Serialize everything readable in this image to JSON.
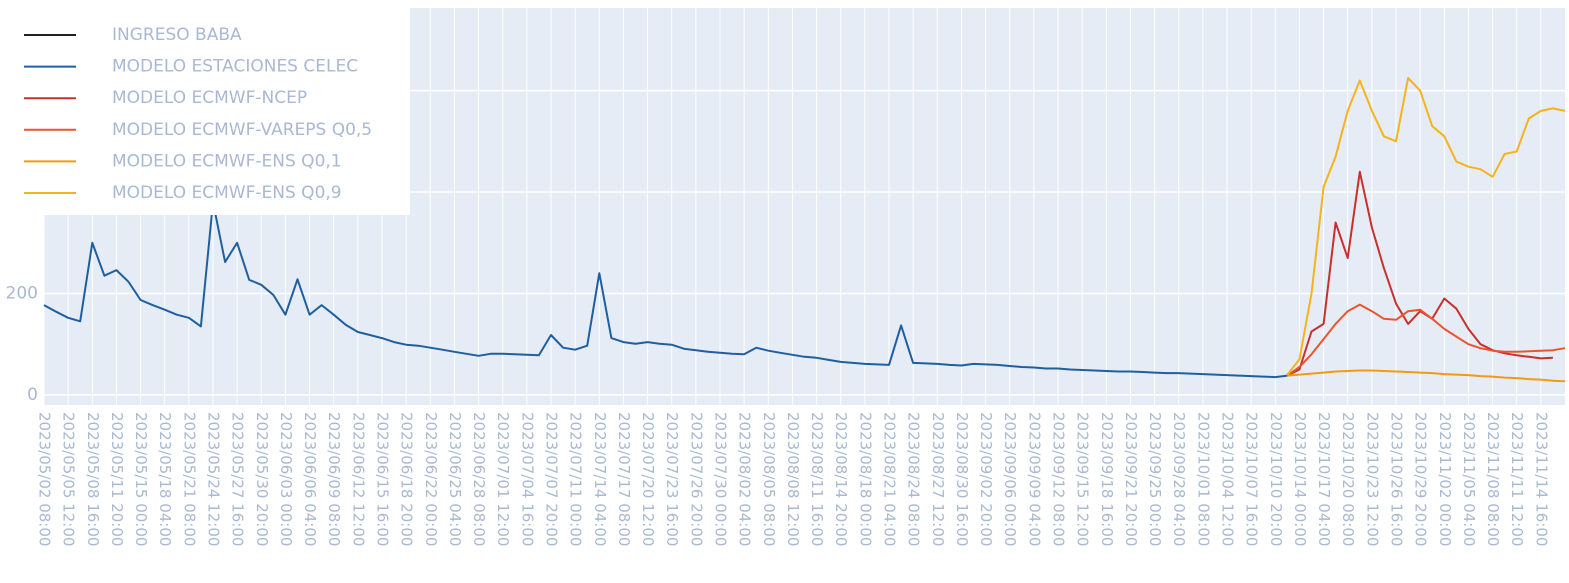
{
  "chart_data": {
    "type": "line",
    "x": [
      "2023/05/02 08:00",
      "2023/05/03 22:00",
      "2023/05/05 12:00",
      "2023/05/07 02:00",
      "2023/05/08 16:00",
      "2023/05/10 06:00",
      "2023/05/11 20:00",
      "2023/05/13 10:00",
      "2023/05/15 00:00",
      "2023/05/16 14:00",
      "2023/05/18 04:00",
      "2023/05/19 18:00",
      "2023/05/21 08:00",
      "2023/05/22 22:00",
      "2023/05/24 12:00",
      "2023/05/26 02:00",
      "2023/05/27 16:00",
      "2023/05/29 06:00",
      "2023/05/30 20:00",
      "2023/06/01 10:00",
      "2023/06/03 00:00",
      "2023/06/04 14:00",
      "2023/06/06 04:00",
      "2023/06/07 18:00",
      "2023/06/09 08:00",
      "2023/06/10 22:00",
      "2023/06/12 12:00",
      "2023/06/14 02:00",
      "2023/06/15 16:00",
      "2023/06/17 06:00",
      "2023/06/18 20:00",
      "2023/06/20 10:00",
      "2023/06/22 00:00",
      "2023/06/23 14:00",
      "2023/06/25 04:00",
      "2023/06/26 18:00",
      "2023/06/28 08:00",
      "2023/06/29 22:00",
      "2023/07/01 12:00",
      "2023/07/03 02:00",
      "2023/07/04 16:00",
      "2023/07/06 06:00",
      "2023/07/07 20:00",
      "2023/07/09 10:00",
      "2023/07/11 00:00",
      "2023/07/12 14:00",
      "2023/07/14 04:00",
      "2023/07/15 18:00",
      "2023/07/17 08:00",
      "2023/07/18 22:00",
      "2023/07/20 12:00",
      "2023/07/22 02:00",
      "2023/07/23 16:00",
      "2023/07/25 06:00",
      "2023/07/26 20:00",
      "2023/07/28 10:00",
      "2023/07/30 00:00",
      "2023/07/31 14:00",
      "2023/08/02 04:00",
      "2023/08/03 18:00",
      "2023/08/05 08:00",
      "2023/08/06 22:00",
      "2023/08/08 12:00",
      "2023/08/10 02:00",
      "2023/08/11 16:00",
      "2023/08/13 06:00",
      "2023/08/14 20:00",
      "2023/08/16 10:00",
      "2023/08/18 00:00",
      "2023/08/19 14:00",
      "2023/08/21 04:00",
      "2023/08/22 18:00",
      "2023/08/24 08:00",
      "2023/08/25 22:00",
      "2023/08/27 12:00",
      "2023/08/29 02:00",
      "2023/08/30 16:00",
      "2023/09/01 06:00",
      "2023/09/02 20:00",
      "2023/09/04 10:00",
      "2023/09/06 00:00",
      "2023/09/07 14:00",
      "2023/09/09 04:00",
      "2023/09/10 18:00",
      "2023/09/12 08:00",
      "2023/09/13 22:00",
      "2023/09/15 12:00",
      "2023/09/17 02:00",
      "2023/09/18 16:00",
      "2023/09/20 06:00",
      "2023/09/21 20:00",
      "2023/09/23 10:00",
      "2023/09/25 00:00",
      "2023/09/26 14:00",
      "2023/09/28 04:00",
      "2023/09/29 18:00",
      "2023/10/01 08:00",
      "2023/10/02 22:00",
      "2023/10/04 12:00",
      "2023/10/06 02:00",
      "2023/10/07 16:00",
      "2023/10/09 06:00",
      "2023/10/10 20:00",
      "2023/10/12 10:00",
      "2023/10/14 00:00",
      "2023/10/15 14:00",
      "2023/10/17 04:00",
      "2023/10/18 18:00",
      "2023/10/20 08:00",
      "2023/10/21 22:00",
      "2023/10/23 12:00",
      "2023/10/25 02:00",
      "2023/10/26 16:00",
      "2023/10/28 06:00",
      "2023/10/29 20:00",
      "2023/10/31 10:00",
      "2023/11/02 00:00",
      "2023/11/03 14:00",
      "2023/11/05 04:00",
      "2023/11/06 18:00",
      "2023/11/08 08:00",
      "2023/11/09 22:00",
      "2023/11/11 12:00",
      "2023/11/13 02:00",
      "2023/11/14 16:00",
      "2023/11/16 06:00",
      "2023/11/17 20:00"
    ],
    "xticks": [
      "2023/05/02 08:00",
      "2023/05/05 12:00",
      "2023/05/08 16:00",
      "2023/05/11 20:00",
      "2023/05/15 00:00",
      "2023/05/18 04:00",
      "2023/05/21 08:00",
      "2023/05/24 12:00",
      "2023/05/27 16:00",
      "2023/05/30 20:00",
      "2023/06/03 00:00",
      "2023/06/06 04:00",
      "2023/06/09 08:00",
      "2023/06/12 12:00",
      "2023/06/15 16:00",
      "2023/06/18 20:00",
      "2023/06/22 00:00",
      "2023/06/25 04:00",
      "2023/06/28 08:00",
      "2023/07/01 12:00",
      "2023/07/04 16:00",
      "2023/07/07 20:00",
      "2023/07/11 00:00",
      "2023/07/14 04:00",
      "2023/07/17 08:00",
      "2023/07/20 12:00",
      "2023/07/23 16:00",
      "2023/07/26 20:00",
      "2023/07/30 00:00",
      "2023/08/02 04:00",
      "2023/08/05 08:00",
      "2023/08/08 12:00",
      "2023/08/11 16:00",
      "2023/08/14 20:00",
      "2023/08/18 00:00",
      "2023/08/21 04:00",
      "2023/08/24 08:00",
      "2023/08/27 12:00",
      "2023/08/30 16:00",
      "2023/09/02 20:00",
      "2023/09/06 00:00",
      "2023/09/09 04:00",
      "2023/09/12 08:00",
      "2023/09/15 12:00",
      "2023/09/18 16:00",
      "2023/09/21 20:00",
      "2023/09/25 00:00",
      "2023/09/28 04:00",
      "2023/10/01 08:00",
      "2023/10/04 12:00",
      "2023/10/07 16:00",
      "2023/10/10 20:00",
      "2023/10/14 00:00",
      "2023/10/17 04:00",
      "2023/10/20 08:00",
      "2023/10/23 12:00",
      "2023/10/26 16:00",
      "2023/10/29 20:00",
      "2023/11/02 00:00",
      "2023/11/05 04:00",
      "2023/11/08 08:00",
      "2023/11/11 12:00",
      "2023/11/14 16:00"
    ],
    "ylim": [
      -20,
      763
    ],
    "yticks": [
      0,
      200,
      400,
      600
    ],
    "grid": true,
    "legend": "top-left",
    "series": [
      {
        "name": "INGRESO BABA",
        "color": "#222222",
        "values": [
          null,
          null,
          null,
          null,
          null,
          null,
          null,
          null,
          null,
          null,
          null,
          null,
          null,
          null,
          null,
          null,
          null,
          null,
          null,
          null,
          null,
          null,
          null,
          null,
          null,
          null,
          null,
          null,
          null,
          null,
          null,
          null,
          null,
          null,
          null,
          null,
          null,
          null,
          null,
          null,
          null,
          null,
          null,
          null,
          null,
          null,
          null,
          null,
          null,
          null,
          null,
          null,
          null,
          null,
          null,
          null,
          null,
          null,
          null,
          null,
          null,
          null,
          null,
          null,
          null,
          null,
          null,
          null,
          null,
          null,
          null,
          null,
          null,
          null,
          null,
          null,
          null,
          null,
          null,
          null,
          null,
          null,
          null,
          null,
          null,
          null,
          null,
          null,
          null,
          null,
          null,
          null,
          null,
          null,
          null,
          null,
          null,
          null,
          null,
          null,
          null,
          null,
          null,
          null,
          null,
          null,
          null,
          null,
          null,
          null,
          null,
          null,
          null,
          null,
          null,
          null,
          null,
          null,
          null,
          null,
          null,
          null,
          null,
          null,
          null,
          null,
          null
        ]
      },
      {
        "name": "MODELO ESTACIONES CELEC",
        "color": "#1f5f9e",
        "values": [
          177,
          164,
          152,
          145,
          300,
          235,
          246,
          223,
          187,
          177,
          168,
          158,
          152,
          135,
          380,
          262,
          300,
          227,
          217,
          197,
          158,
          228,
          158,
          177,
          158,
          138,
          124,
          118,
          112,
          104,
          99,
          97,
          93,
          89,
          85,
          81,
          77,
          81,
          81,
          80,
          79,
          78,
          118,
          93,
          89,
          97,
          240,
          112,
          104,
          101,
          104,
          101,
          99,
          91,
          88,
          85,
          83,
          81,
          80,
          93,
          87,
          83,
          79,
          75,
          73,
          69,
          65,
          63,
          61,
          60,
          59,
          137,
          63,
          62,
          61,
          59,
          58,
          61,
          60,
          59,
          57,
          55,
          54,
          52,
          52,
          50,
          49,
          48,
          47,
          46,
          46,
          45,
          44,
          43,
          43,
          42,
          41,
          40,
          39,
          38,
          37,
          36,
          35,
          38,
          null,
          null,
          null,
          null,
          null,
          null,
          null,
          null,
          null,
          null,
          null,
          null,
          null,
          null,
          null,
          null,
          null,
          null,
          null,
          null,
          null,
          null,
          null
        ]
      },
      {
        "name": "MODELO ECMWF-NCEP",
        "color": "#c8302c",
        "values": [
          null,
          null,
          null,
          null,
          null,
          null,
          null,
          null,
          null,
          null,
          null,
          null,
          null,
          null,
          null,
          null,
          null,
          null,
          null,
          null,
          null,
          null,
          null,
          null,
          null,
          null,
          null,
          null,
          null,
          null,
          null,
          null,
          null,
          null,
          null,
          null,
          null,
          null,
          null,
          null,
          null,
          null,
          null,
          null,
          null,
          null,
          null,
          null,
          null,
          null,
          null,
          null,
          null,
          null,
          null,
          null,
          null,
          null,
          null,
          null,
          null,
          null,
          null,
          null,
          null,
          null,
          null,
          null,
          null,
          null,
          null,
          null,
          null,
          null,
          null,
          null,
          null,
          null,
          null,
          null,
          null,
          null,
          null,
          null,
          null,
          null,
          null,
          null,
          null,
          null,
          null,
          null,
          null,
          null,
          null,
          null,
          null,
          null,
          null,
          null,
          null,
          null,
          null,
          38,
          50,
          125,
          140,
          340,
          270,
          440,
          330,
          250,
          180,
          140,
          165,
          150,
          190,
          170,
          130,
          100,
          88,
          82,
          78,
          75,
          72,
          73,
          null
        ]
      },
      {
        "name": "MODELO ECMWF-VAREPS Q0,5",
        "color": "#e8552e",
        "values": [
          null,
          null,
          null,
          null,
          null,
          null,
          null,
          null,
          null,
          null,
          null,
          null,
          null,
          null,
          null,
          null,
          null,
          null,
          null,
          null,
          null,
          null,
          null,
          null,
          null,
          null,
          null,
          null,
          null,
          null,
          null,
          null,
          null,
          null,
          null,
          null,
          null,
          null,
          null,
          null,
          null,
          null,
          null,
          null,
          null,
          null,
          null,
          null,
          null,
          null,
          null,
          null,
          null,
          null,
          null,
          null,
          null,
          null,
          null,
          null,
          null,
          null,
          null,
          null,
          null,
          null,
          null,
          null,
          null,
          null,
          null,
          null,
          null,
          null,
          null,
          null,
          null,
          null,
          null,
          null,
          null,
          null,
          null,
          null,
          null,
          null,
          null,
          null,
          null,
          null,
          null,
          null,
          null,
          null,
          null,
          null,
          null,
          null,
          null,
          null,
          null,
          null,
          null,
          38,
          55,
          80,
          110,
          140,
          165,
          178,
          165,
          150,
          148,
          165,
          168,
          150,
          130,
          115,
          100,
          92,
          87,
          85,
          85,
          86,
          87,
          88,
          92
        ]
      },
      {
        "name": "MODELO ECMWF-ENS Q0,1",
        "color": "#f29a12",
        "values": [
          null,
          null,
          null,
          null,
          null,
          null,
          null,
          null,
          null,
          null,
          null,
          null,
          null,
          null,
          null,
          null,
          null,
          null,
          null,
          null,
          null,
          null,
          null,
          null,
          null,
          null,
          null,
          null,
          null,
          null,
          null,
          null,
          null,
          null,
          null,
          null,
          null,
          null,
          null,
          null,
          null,
          null,
          null,
          null,
          null,
          null,
          null,
          null,
          null,
          null,
          null,
          null,
          null,
          null,
          null,
          null,
          null,
          null,
          null,
          null,
          null,
          null,
          null,
          null,
          null,
          null,
          null,
          null,
          null,
          null,
          null,
          null,
          null,
          null,
          null,
          null,
          null,
          null,
          null,
          null,
          null,
          null,
          null,
          null,
          null,
          null,
          null,
          null,
          null,
          null,
          null,
          null,
          null,
          null,
          null,
          null,
          null,
          null,
          null,
          null,
          null,
          null,
          null,
          38,
          40,
          42,
          44,
          46,
          47,
          48,
          48,
          47,
          46,
          45,
          44,
          43,
          41,
          40,
          39,
          37,
          36,
          34,
          33,
          31,
          30,
          28,
          27
        ]
      },
      {
        "name": "MODELO ECMWF-ENS Q0,9",
        "color": "#f6b31a",
        "values": [
          null,
          null,
          null,
          null,
          null,
          null,
          null,
          null,
          null,
          null,
          null,
          null,
          null,
          null,
          null,
          null,
          null,
          null,
          null,
          null,
          null,
          null,
          null,
          null,
          null,
          null,
          null,
          null,
          null,
          null,
          null,
          null,
          null,
          null,
          null,
          null,
          null,
          null,
          null,
          null,
          null,
          null,
          null,
          null,
          null,
          null,
          null,
          null,
          null,
          null,
          null,
          null,
          null,
          null,
          null,
          null,
          null,
          null,
          null,
          null,
          null,
          null,
          null,
          null,
          null,
          null,
          null,
          null,
          null,
          null,
          null,
          null,
          null,
          null,
          null,
          null,
          null,
          null,
          null,
          null,
          null,
          null,
          null,
          null,
          null,
          null,
          null,
          null,
          null,
          null,
          null,
          null,
          null,
          null,
          null,
          null,
          null,
          null,
          null,
          null,
          null,
          null,
          null,
          40,
          70,
          200,
          410,
          470,
          560,
          620,
          560,
          510,
          500,
          625,
          600,
          530,
          510,
          460,
          450,
          445,
          430,
          475,
          480,
          545,
          560,
          565,
          560
        ]
      }
    ]
  }
}
